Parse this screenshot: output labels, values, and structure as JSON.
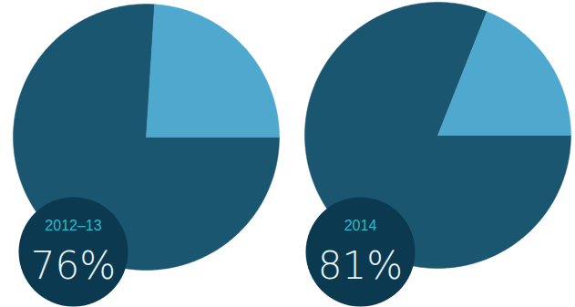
{
  "chart_data": [
    {
      "type": "pie",
      "title": "2012–13",
      "values": [
        76,
        24
      ],
      "value_labels": [
        "76%",
        null
      ],
      "colors": [
        "#1a5670",
        "#4fa9cf"
      ],
      "data_labels": true
    },
    {
      "type": "pie",
      "title": "2014",
      "values": [
        81,
        19
      ],
      "value_labels": [
        "81%",
        null
      ],
      "colors": [
        "#1a5670",
        "#4fa9cf"
      ],
      "data_labels": true
    }
  ]
}
